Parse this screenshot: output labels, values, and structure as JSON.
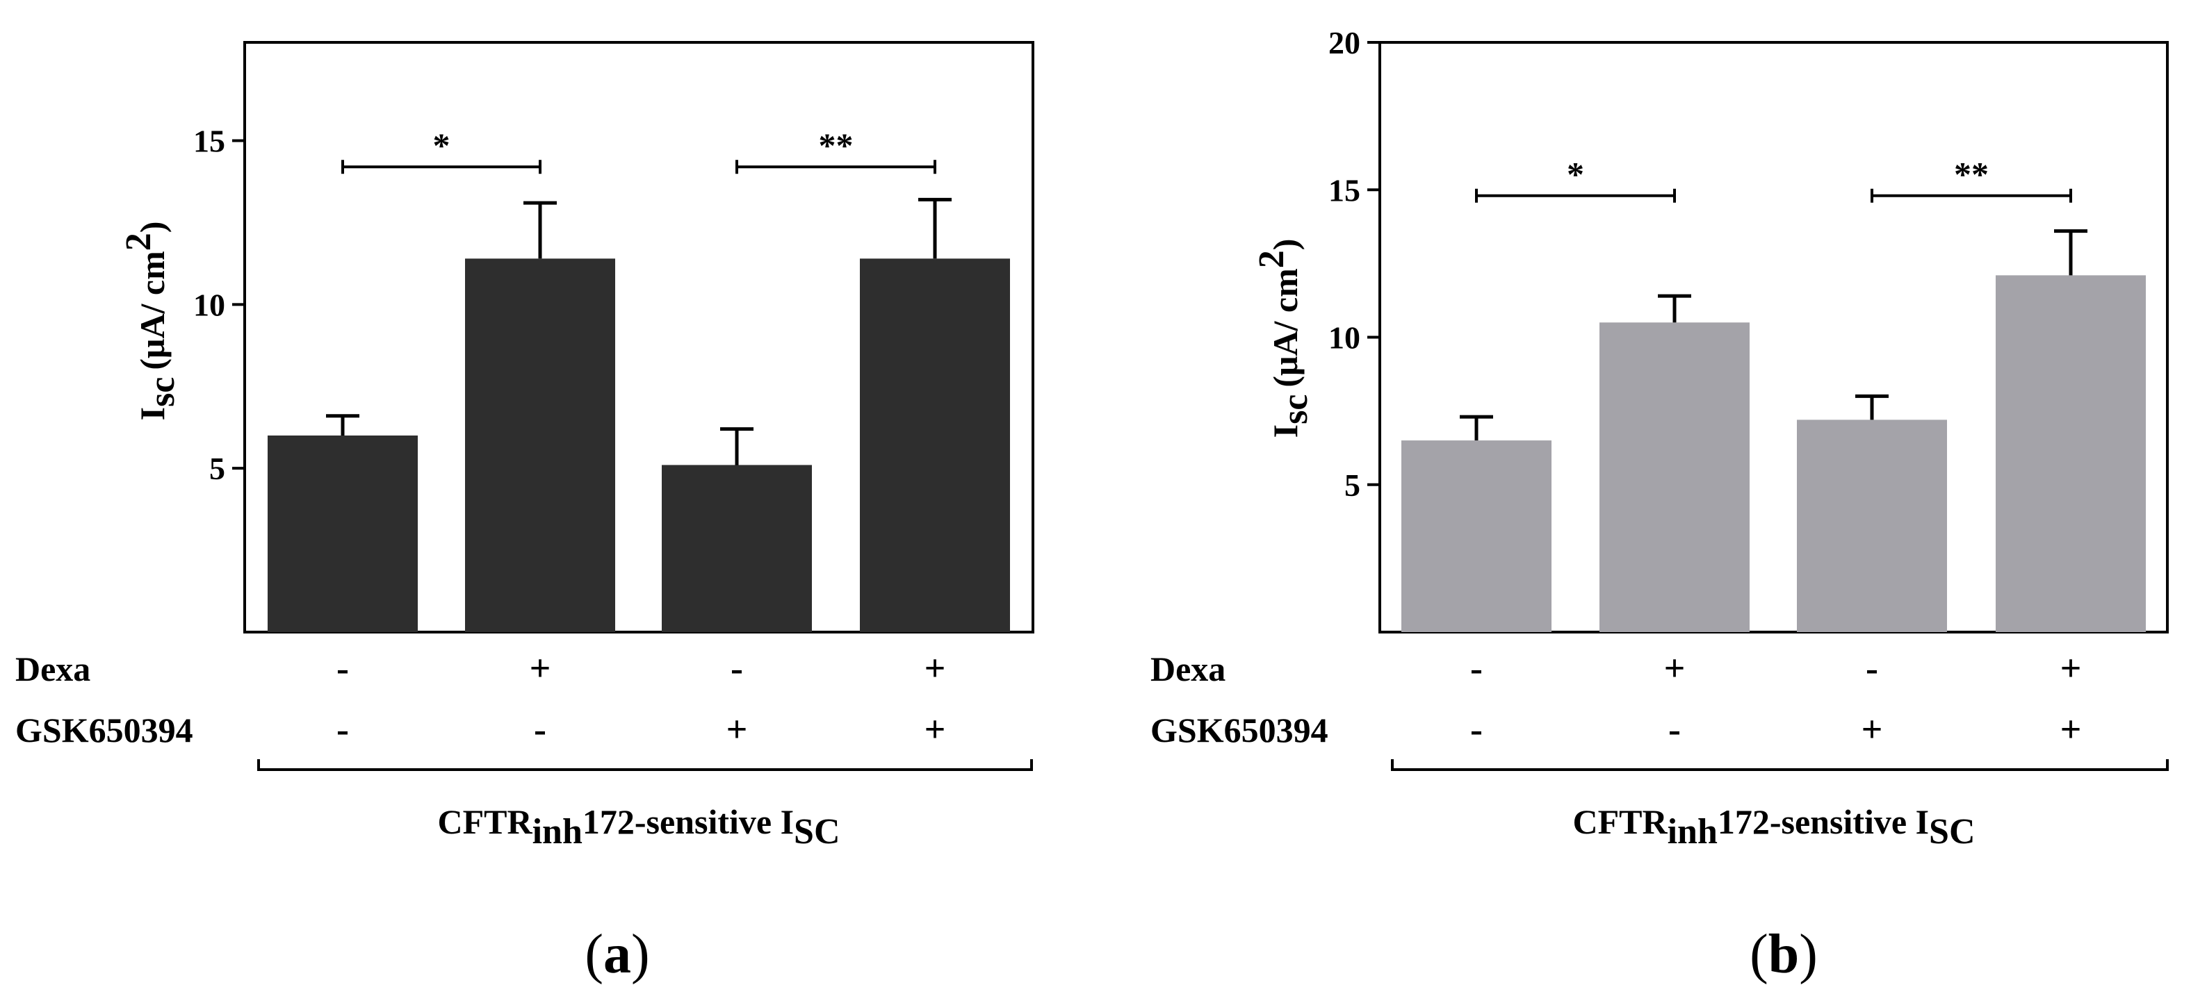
{
  "figure": {
    "conditions": [
      {
        "label": "Dexa",
        "values": [
          "-",
          "+",
          "-",
          "+"
        ]
      },
      {
        "label": "GSK650394",
        "values": [
          "-",
          "-",
          "+",
          "+"
        ]
      }
    ],
    "ylabel_main": "I",
    "ylabel_sub": "sc",
    "ylabel_units": "(μA/ cm",
    "ylabel_sup": "2",
    "ylabel_close": ")",
    "bottom_caption_prefix": "CFTR",
    "bottom_caption_sub": "inh",
    "bottom_caption_mid": "172-sensitive I",
    "bottom_caption_sub2": "SC"
  },
  "chart_data": [
    {
      "type": "bar",
      "panel_label": "a",
      "title": "",
      "xlabel": "CFTRinh172-sensitive ISC",
      "ylabel": "Isc (μA/ cm2)",
      "categories": [
        "Dexa - / GSK650394 -",
        "Dexa + / GSK650394 -",
        "Dexa - / GSK650394 +",
        "Dexa + / GSK650394 +"
      ],
      "values": [
        6.0,
        11.4,
        5.1,
        11.4
      ],
      "errors": [
        0.6,
        1.7,
        1.1,
        1.8
      ],
      "ylim": [
        0,
        18
      ],
      "yticks": [
        5,
        10,
        15
      ],
      "color": "#2e2e2e",
      "grid": false,
      "annotations": [
        {
          "from": 0,
          "to": 1,
          "y": 14.2,
          "label": "*"
        },
        {
          "from": 2,
          "to": 3,
          "y": 14.2,
          "label": "**"
        }
      ]
    },
    {
      "type": "bar",
      "panel_label": "b",
      "title": "",
      "xlabel": "CFTRinh172-sensitive ISC",
      "ylabel": "Isc (μA/ cm2)",
      "categories": [
        "Dexa - / GSK650394 -",
        "Dexa + / GSK650394 -",
        "Dexa - / GSK650394 +",
        "Dexa + / GSK650394 +"
      ],
      "values": [
        6.5,
        10.5,
        7.2,
        12.1
      ],
      "errors": [
        0.8,
        0.9,
        0.8,
        1.5
      ],
      "ylim": [
        0,
        20
      ],
      "yticks": [
        5,
        10,
        15,
        20
      ],
      "color": "#a4a3a9",
      "grid": false,
      "annotations": [
        {
          "from": 0,
          "to": 1,
          "y": 14.8,
          "label": "*"
        },
        {
          "from": 2,
          "to": 3,
          "y": 14.8,
          "label": "**"
        }
      ]
    }
  ]
}
